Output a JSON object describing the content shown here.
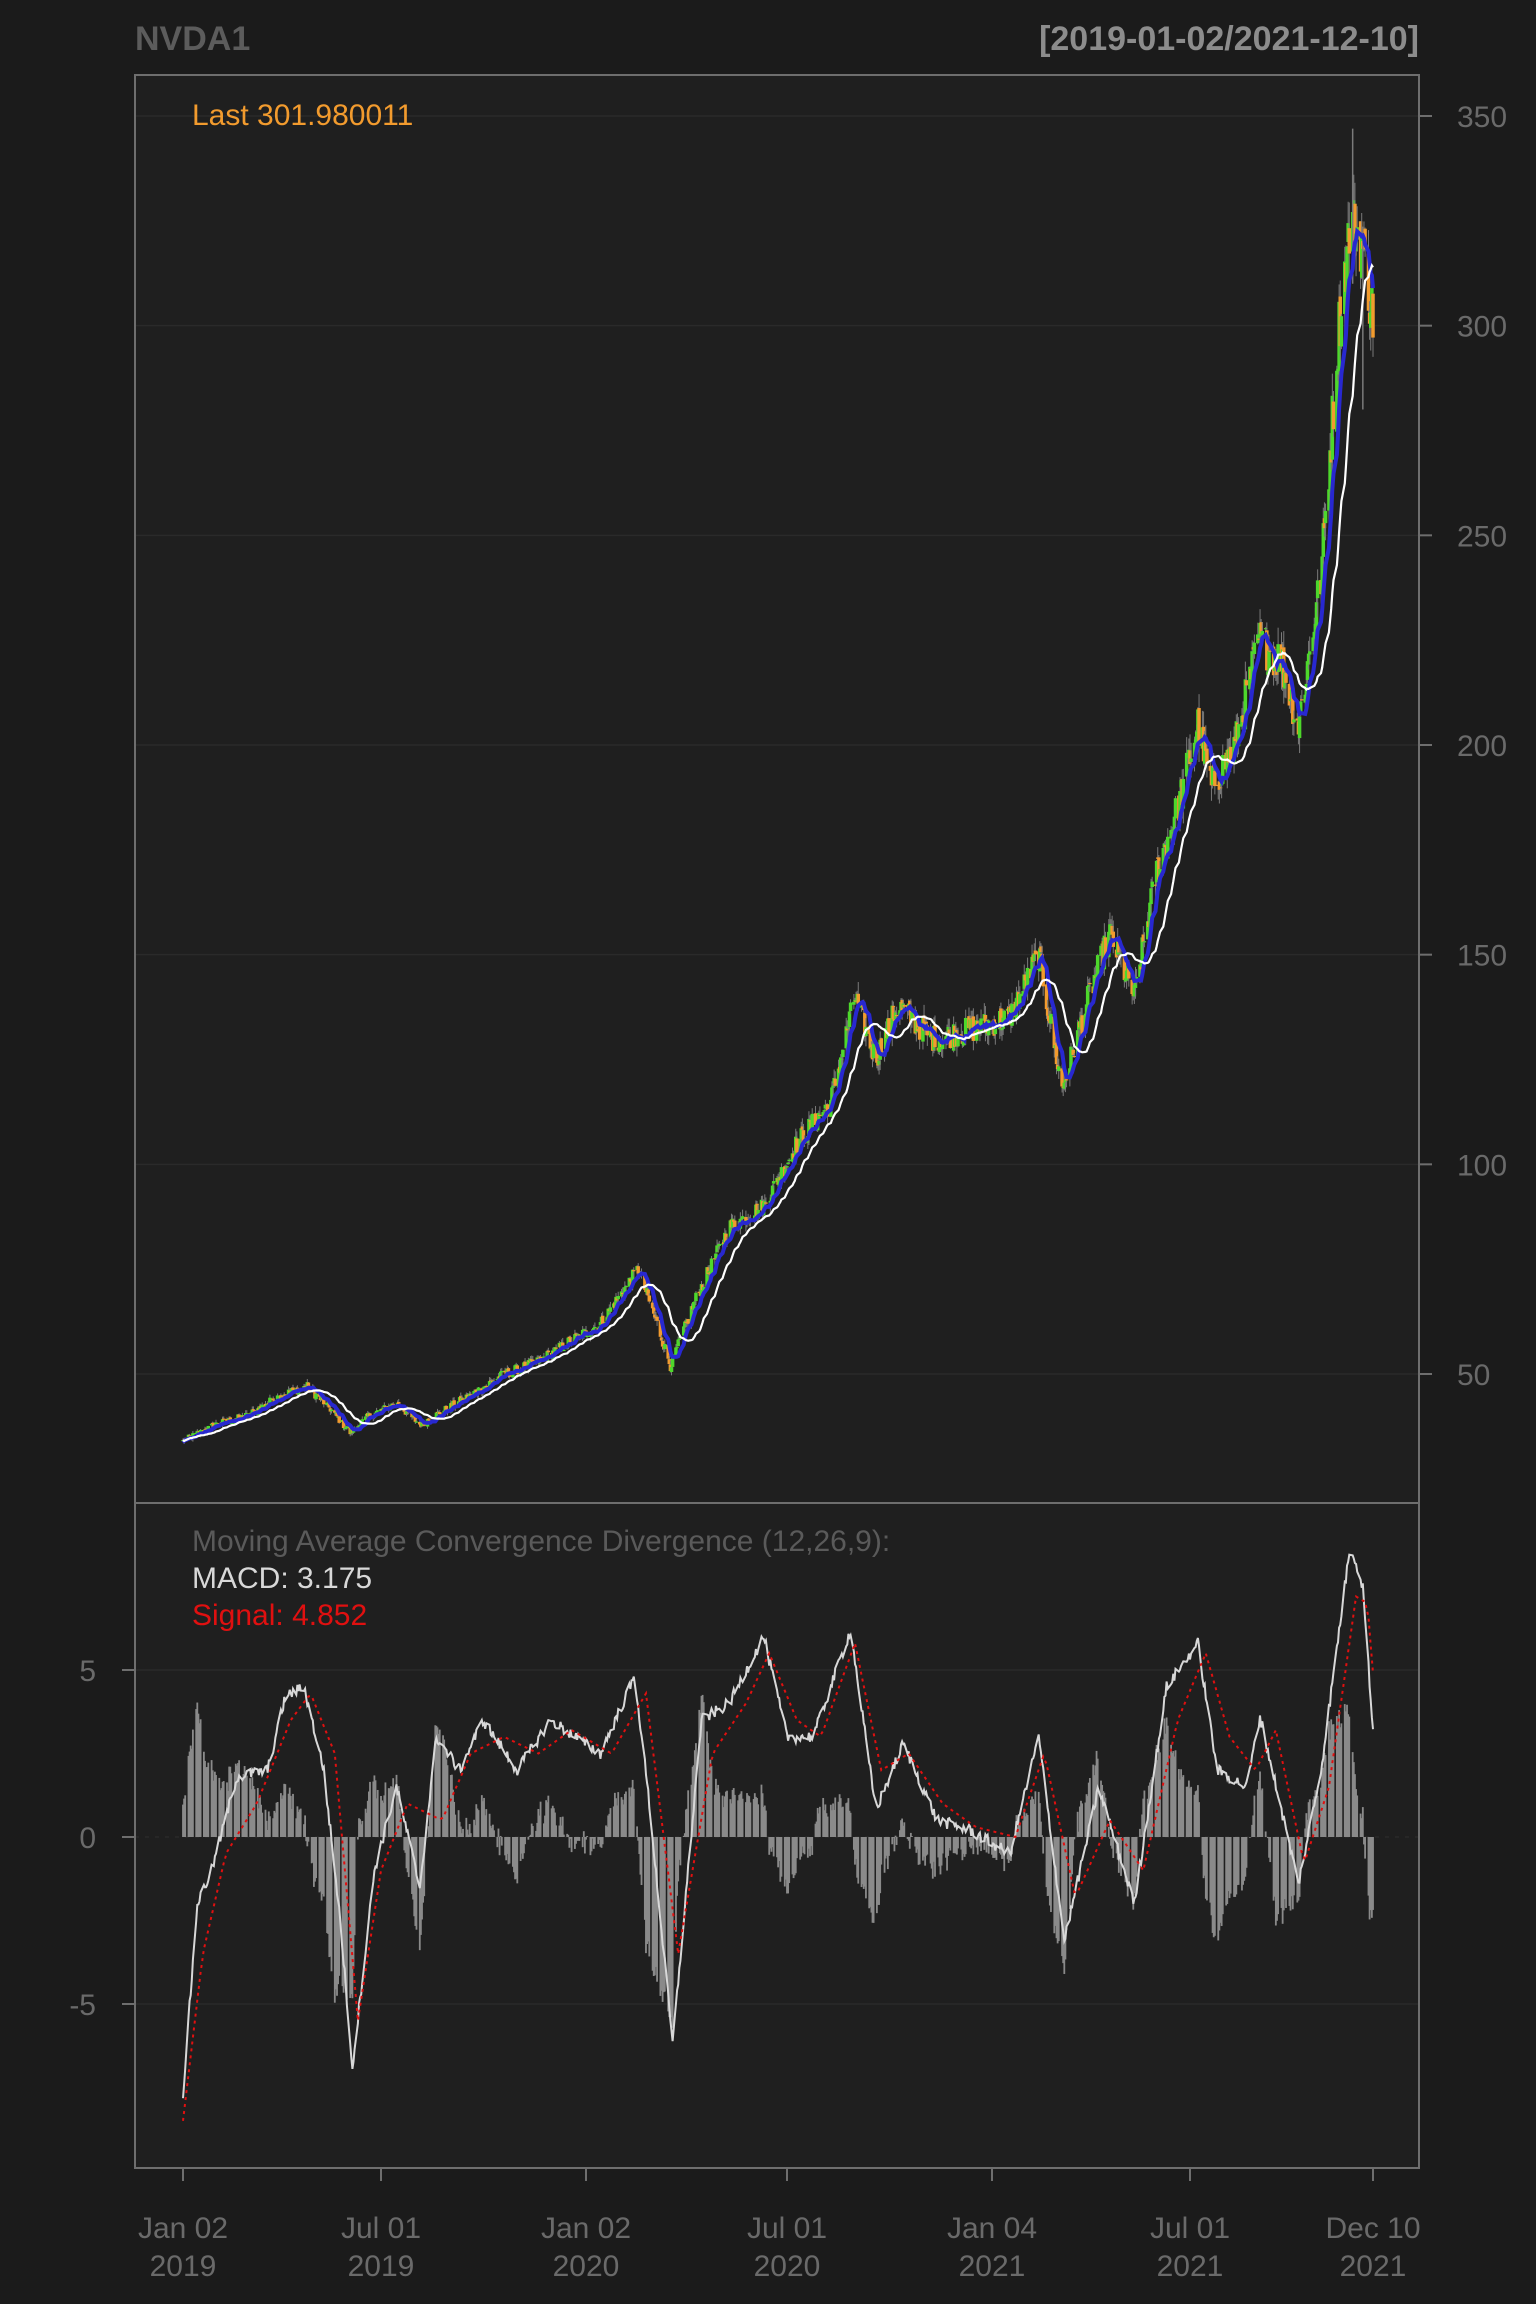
{
  "chart_data": {
    "type": "candlestick",
    "symbol": "NVDA1",
    "date_range": "[2019-01-02/2021-12-10]",
    "last_label": "Last 301.980011",
    "x_ticks": [
      {
        "date": "2019-01-02",
        "line1": "Jan 02",
        "line2": "2019"
      },
      {
        "date": "2019-07-01",
        "line1": "Jul 01",
        "line2": "2019"
      },
      {
        "date": "2020-01-02",
        "line1": "Jan 02",
        "line2": "2020"
      },
      {
        "date": "2020-07-01",
        "line1": "Jul 01",
        "line2": "2020"
      },
      {
        "date": "2021-01-04",
        "line1": "Jan 04",
        "line2": "2021"
      },
      {
        "date": "2021-07-01",
        "line1": "Jul 01",
        "line2": "2021"
      },
      {
        "date": "2021-12-10",
        "line1": "Dec 10",
        "line2": "2021"
      }
    ],
    "price_panel": {
      "ylim": [
        20,
        350
      ],
      "y_ticks": [
        50,
        100,
        150,
        200,
        250,
        300,
        350
      ],
      "close_approx": [
        [
          "2019-01-02",
          34
        ],
        [
          "2019-02-01",
          38
        ],
        [
          "2019-03-01",
          40
        ],
        [
          "2019-04-01",
          45
        ],
        [
          "2019-04-25",
          47
        ],
        [
          "2019-05-15",
          42
        ],
        [
          "2019-06-03",
          36
        ],
        [
          "2019-06-20",
          40
        ],
        [
          "2019-07-15",
          43
        ],
        [
          "2019-08-05",
          38
        ],
        [
          "2019-08-25",
          41
        ],
        [
          "2019-09-20",
          45
        ],
        [
          "2019-10-20",
          50
        ],
        [
          "2019-11-20",
          53
        ],
        [
          "2019-12-20",
          58
        ],
        [
          "2020-01-15",
          62
        ],
        [
          "2020-02-18",
          75
        ],
        [
          "2020-03-06",
          62
        ],
        [
          "2020-03-18",
          52
        ],
        [
          "2020-04-10",
          68
        ],
        [
          "2020-05-10",
          85
        ],
        [
          "2020-06-10",
          90
        ],
        [
          "2020-07-10",
          105
        ],
        [
          "2020-08-10",
          115
        ],
        [
          "2020-09-01",
          140
        ],
        [
          "2020-09-20",
          125
        ],
        [
          "2020-10-10",
          138
        ],
        [
          "2020-11-10",
          130
        ],
        [
          "2020-12-15",
          132
        ],
        [
          "2021-01-20",
          135
        ],
        [
          "2021-02-15",
          150
        ],
        [
          "2021-03-08",
          118
        ],
        [
          "2021-04-01",
          140
        ],
        [
          "2021-04-20",
          155
        ],
        [
          "2021-05-12",
          140
        ],
        [
          "2021-06-01",
          170
        ],
        [
          "2021-06-20",
          185
        ],
        [
          "2021-07-08",
          205
        ],
        [
          "2021-07-20",
          190
        ],
        [
          "2021-08-10",
          200
        ],
        [
          "2021-08-31",
          225
        ],
        [
          "2021-09-20",
          220
        ],
        [
          "2021-10-05",
          205
        ],
        [
          "2021-10-25",
          240
        ],
        [
          "2021-11-10",
          300
        ],
        [
          "2021-11-20",
          325
        ],
        [
          "2021-11-30",
          320
        ],
        [
          "2021-12-10",
          302
        ]
      ],
      "intraday_max_approx": 347,
      "intraday_min_approx": 30,
      "series": [
        {
          "name": "price",
          "color_up": "#4dd82b",
          "color_down": "#f29b2e"
        },
        {
          "name": "short moving average",
          "color": "#2828d0"
        },
        {
          "name": "long moving average",
          "color": "#ffffff"
        }
      ]
    },
    "macd_panel": {
      "title": "Moving Average Convergence Divergence (12,26,9):",
      "macd_label": "MACD: 3.175",
      "signal_label": "Signal: 4.852",
      "ylim": [
        -10,
        10
      ],
      "y_ticks": [
        5,
        0,
        -5
      ],
      "macd_points": [
        [
          "2019-01-02",
          -7.7
        ],
        [
          "2019-01-15",
          -2.0
        ],
        [
          "2019-01-28",
          -1.0
        ],
        [
          "2019-02-20",
          1.8
        ],
        [
          "2019-03-20",
          2.0
        ],
        [
          "2019-04-05",
          4.2
        ],
        [
          "2019-04-22",
          4.5
        ],
        [
          "2019-05-10",
          2.0
        ],
        [
          "2019-05-25",
          -2.5
        ],
        [
          "2019-06-05",
          -6.9
        ],
        [
          "2019-06-25",
          -1.0
        ],
        [
          "2019-07-15",
          1.5
        ],
        [
          "2019-08-05",
          -1.5
        ],
        [
          "2019-08-20",
          3.0
        ],
        [
          "2019-09-10",
          2.0
        ],
        [
          "2019-10-01",
          3.5
        ],
        [
          "2019-11-01",
          2.0
        ],
        [
          "2019-12-01",
          3.5
        ],
        [
          "2020-01-15",
          2.5
        ],
        [
          "2020-02-15",
          4.8
        ],
        [
          "2020-02-28",
          1.0
        ],
        [
          "2020-03-20",
          -6.2
        ],
        [
          "2020-04-15",
          3.5
        ],
        [
          "2020-05-10",
          4.0
        ],
        [
          "2020-06-10",
          6.0
        ],
        [
          "2020-07-01",
          3.0
        ],
        [
          "2020-07-25",
          3.0
        ],
        [
          "2020-08-28",
          6.2
        ],
        [
          "2020-09-20",
          0.8
        ],
        [
          "2020-10-15",
          2.8
        ],
        [
          "2020-11-15",
          0.5
        ],
        [
          "2020-12-15",
          0.2
        ],
        [
          "2021-01-20",
          -0.5
        ],
        [
          "2021-02-15",
          3.0
        ],
        [
          "2021-03-10",
          -3.1
        ],
        [
          "2021-04-10",
          1.5
        ],
        [
          "2021-05-12",
          -2.0
        ],
        [
          "2021-06-10",
          4.5
        ],
        [
          "2021-07-08",
          5.8
        ],
        [
          "2021-07-25",
          2.0
        ],
        [
          "2021-08-20",
          1.5
        ],
        [
          "2021-09-01",
          3.6
        ],
        [
          "2021-10-05",
          -1.4
        ],
        [
          "2021-10-25",
          2.0
        ],
        [
          "2021-11-20",
          8.8
        ],
        [
          "2021-12-01",
          7.5
        ],
        [
          "2021-12-10",
          3.2
        ]
      ],
      "signal_points": [
        [
          "2019-01-02",
          -8.5
        ],
        [
          "2019-01-20",
          -3.5
        ],
        [
          "2019-02-10",
          -0.5
        ],
        [
          "2019-03-10",
          1.0
        ],
        [
          "2019-04-10",
          3.5
        ],
        [
          "2019-04-28",
          4.3
        ],
        [
          "2019-05-20",
          2.5
        ],
        [
          "2019-06-10",
          -5.5
        ],
        [
          "2019-07-01",
          -1.0
        ],
        [
          "2019-07-25",
          1.0
        ],
        [
          "2019-08-25",
          0.5
        ],
        [
          "2019-09-20",
          2.5
        ],
        [
          "2019-10-20",
          3.0
        ],
        [
          "2019-11-20",
          2.5
        ],
        [
          "2019-12-20",
          3.2
        ],
        [
          "2020-01-25",
          2.5
        ],
        [
          "2020-02-25",
          4.3
        ],
        [
          "2020-03-25",
          -3.5
        ],
        [
          "2020-04-25",
          2.5
        ],
        [
          "2020-05-25",
          4.0
        ],
        [
          "2020-06-15",
          5.5
        ],
        [
          "2020-07-10",
          3.5
        ],
        [
          "2020-08-01",
          3.0
        ],
        [
          "2020-09-01",
          5.8
        ],
        [
          "2020-09-25",
          2.0
        ],
        [
          "2020-10-20",
          2.5
        ],
        [
          "2020-11-20",
          1.0
        ],
        [
          "2020-12-20",
          0.3
        ],
        [
          "2021-01-25",
          0.0
        ],
        [
          "2021-02-20",
          2.5
        ],
        [
          "2021-03-20",
          -1.8
        ],
        [
          "2021-04-20",
          0.5
        ],
        [
          "2021-05-20",
          -1.0
        ],
        [
          "2021-06-20",
          3.5
        ],
        [
          "2021-07-15",
          5.5
        ],
        [
          "2021-08-05",
          3.0
        ],
        [
          "2021-08-28",
          2.0
        ],
        [
          "2021-09-15",
          3.2
        ],
        [
          "2021-10-10",
          -0.8
        ],
        [
          "2021-11-01",
          1.5
        ],
        [
          "2021-11-25",
          7.2
        ],
        [
          "2021-12-05",
          7.0
        ],
        [
          "2021-12-10",
          4.9
        ]
      ],
      "colors": {
        "macd": "#d8d8d8",
        "signal": "#e01010",
        "histogram": "#8a8a8a"
      }
    }
  }
}
